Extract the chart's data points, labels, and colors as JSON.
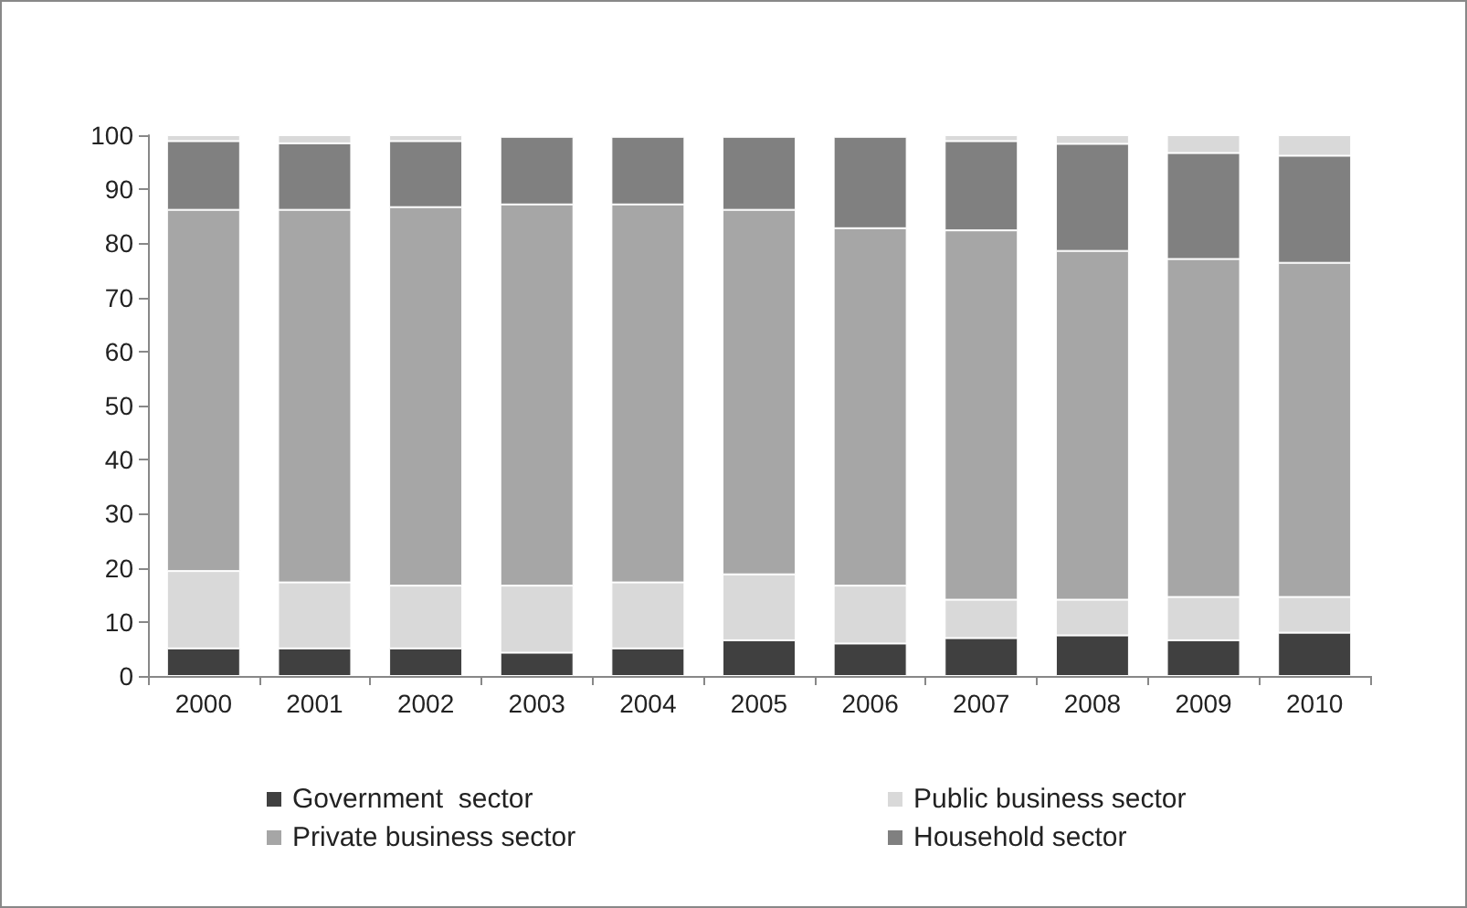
{
  "chart_data": {
    "type": "bar",
    "stacked": true,
    "categories": [
      "2000",
      "2001",
      "2002",
      "2003",
      "2004",
      "2005",
      "2006",
      "2007",
      "2008",
      "2009",
      "2010"
    ],
    "series": [
      {
        "name": "Government  sector",
        "color": "#404040",
        "values": [
          5.1,
          5.1,
          5.1,
          4.3,
          5.1,
          6.6,
          6.0,
          7.0,
          7.5,
          6.6,
          8.0
        ]
      },
      {
        "name": "Public business sector",
        "color": "#d9d9d9",
        "values": [
          14.3,
          12.2,
          11.6,
          12.4,
          12.2,
          12.2,
          10.7,
          7.1,
          6.6,
          8.0,
          6.6
        ]
      },
      {
        "name": "Private business sector",
        "color": "#a6a6a6",
        "values": [
          66.8,
          68.9,
          70.0,
          70.5,
          69.9,
          67.4,
          66.1,
          68.3,
          64.5,
          62.5,
          61.8
        ]
      },
      {
        "name": "Household sector",
        "color": "#808080",
        "values": [
          12.7,
          12.3,
          12.2,
          12.5,
          12.5,
          13.5,
          16.9,
          16.5,
          19.8,
          19.6,
          19.8
        ]
      },
      {
        "color": "#d9d9d9",
        "values": [
          1.1,
          1.5,
          1.1,
          0.3,
          0.3,
          0.3,
          0.3,
          1.1,
          1.6,
          3.3,
          3.8
        ]
      }
    ],
    "ylim": [
      0,
      100
    ],
    "yticks": [
      0,
      10,
      20,
      30,
      40,
      50,
      60,
      70,
      80,
      90,
      100
    ],
    "grid": false,
    "legend": "bottom"
  }
}
